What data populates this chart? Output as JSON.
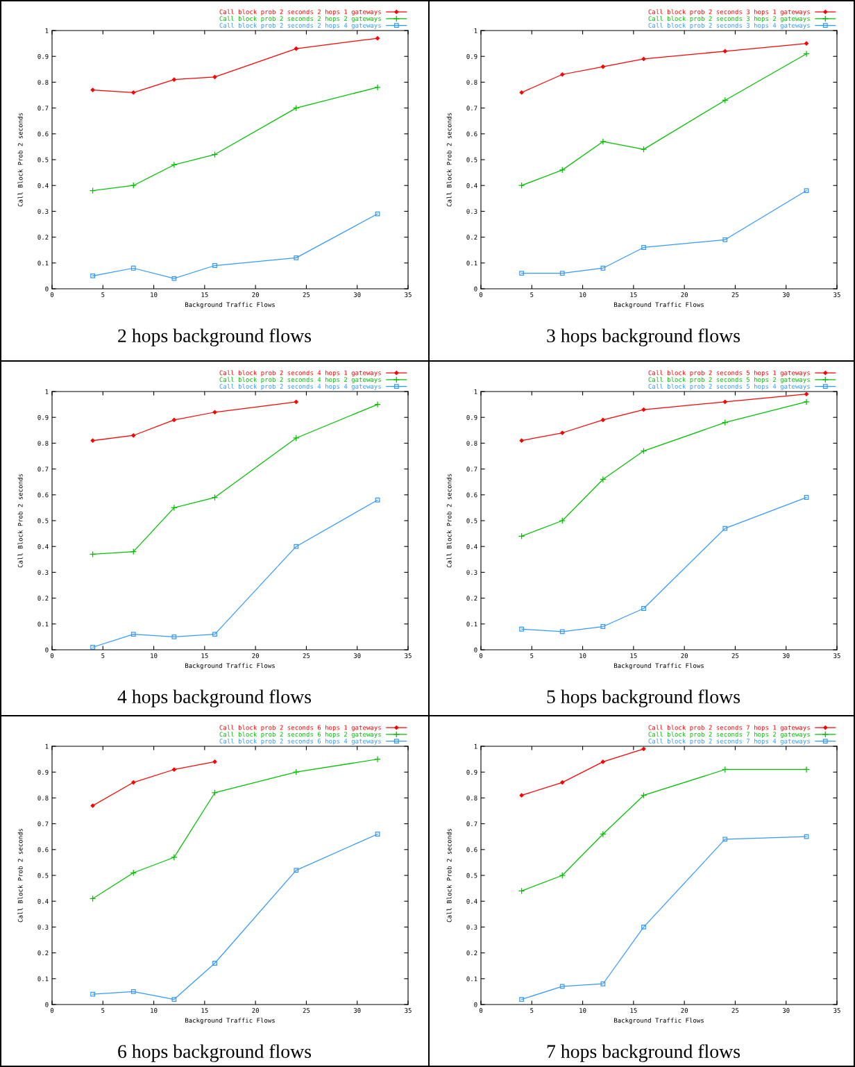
{
  "chart_data": [
    {
      "type": "line",
      "title": "2 hops background flows",
      "xlabel": "Background Traffic Flows",
      "ylabel": "Call Block Prob 2 seconds",
      "x": [
        4,
        8,
        12,
        16,
        24,
        32
      ],
      "xlim": [
        0,
        35
      ],
      "xticks": [
        0,
        5,
        10,
        15,
        20,
        25,
        30,
        35
      ],
      "ylim": [
        0,
        1
      ],
      "yticks": [
        0,
        0.1,
        0.2,
        0.3,
        0.4,
        0.5,
        0.6,
        0.7,
        0.8,
        0.9,
        1
      ],
      "legend": "top right",
      "grid": false,
      "line_style": "solid",
      "series": [
        {
          "name": "Call block prob 2 seconds 2 hops 1 gateways",
          "color": "#ff0000",
          "marker": "diamond",
          "values": [
            0.77,
            0.76,
            0.81,
            0.82,
            0.93,
            0.97
          ]
        },
        {
          "name": "Call block prob 2 seconds 2 hops 2 gateways",
          "color": "#00c000",
          "marker": "cross",
          "values": [
            0.38,
            0.4,
            0.48,
            0.52,
            0.7,
            0.78
          ]
        },
        {
          "name": "Call block prob 2 seconds 2 hops 4 gateways",
          "color": "#3399ff",
          "marker": "square",
          "values": [
            0.05,
            0.08,
            0.04,
            0.09,
            0.12,
            0.29
          ]
        }
      ]
    },
    {
      "type": "line",
      "title": "3 hops background flows",
      "xlabel": "Background Traffic Flows",
      "ylabel": "Call Block Prob 2 seconds",
      "x": [
        4,
        8,
        12,
        16,
        24,
        32
      ],
      "xlim": [
        0,
        35
      ],
      "xticks": [
        0,
        5,
        10,
        15,
        20,
        25,
        30,
        35
      ],
      "ylim": [
        0,
        1
      ],
      "yticks": [
        0,
        0.1,
        0.2,
        0.3,
        0.4,
        0.5,
        0.6,
        0.7,
        0.8,
        0.9,
        1
      ],
      "legend": "top right",
      "grid": false,
      "line_style": "solid",
      "series": [
        {
          "name": "Call block prob 2 seconds 3 hops 1 gateways",
          "color": "#ff0000",
          "marker": "diamond",
          "values": [
            0.76,
            0.83,
            0.86,
            0.89,
            0.92,
            0.95
          ]
        },
        {
          "name": "Call block prob 2 seconds 3 hops 2 gateways",
          "color": "#00c000",
          "marker": "cross",
          "values": [
            0.4,
            0.46,
            0.57,
            0.54,
            0.73,
            0.91
          ]
        },
        {
          "name": "Call block prob 2 seconds 3 hops 4 gateways",
          "color": "#3399ff",
          "marker": "square",
          "values": [
            0.06,
            0.06,
            0.08,
            0.16,
            0.19,
            0.38
          ]
        }
      ]
    },
    {
      "type": "line",
      "title": "4 hops background flows",
      "xlabel": "Background Traffic Flows",
      "ylabel": "Call Block Prob 2 seconds",
      "x": [
        4,
        8,
        12,
        16,
        24,
        32
      ],
      "xlim": [
        0,
        35
      ],
      "xticks": [
        0,
        5,
        10,
        15,
        20,
        25,
        30,
        35
      ],
      "ylim": [
        0,
        1
      ],
      "yticks": [
        0,
        0.1,
        0.2,
        0.3,
        0.4,
        0.5,
        0.6,
        0.7,
        0.8,
        0.9,
        1
      ],
      "legend": "top right",
      "grid": false,
      "line_style": "solid",
      "series": [
        {
          "name": "Call block prob 2 seconds 4 hops 1 gateways",
          "color": "#ff0000",
          "marker": "diamond",
          "values": [
            0.81,
            0.83,
            0.89,
            0.92,
            0.96,
            null
          ]
        },
        {
          "name": "Call block prob 2 seconds 4 hops 2 gateways",
          "color": "#00c000",
          "marker": "cross",
          "values": [
            0.37,
            0.38,
            0.55,
            0.59,
            0.82,
            0.95
          ]
        },
        {
          "name": "Call block prob 2 seconds 4 hops 4 gateways",
          "color": "#3399ff",
          "marker": "square",
          "values": [
            0.01,
            0.06,
            0.05,
            0.06,
            0.4,
            0.58
          ]
        }
      ]
    },
    {
      "type": "line",
      "title": "5 hops background flows",
      "xlabel": "Background Traffic Flows",
      "ylabel": "Call Block Prob 2 seconds",
      "x": [
        4,
        8,
        12,
        16,
        24,
        32
      ],
      "xlim": [
        0,
        35
      ],
      "xticks": [
        0,
        5,
        10,
        15,
        20,
        25,
        30,
        35
      ],
      "ylim": [
        0,
        1
      ],
      "yticks": [
        0,
        0.1,
        0.2,
        0.3,
        0.4,
        0.5,
        0.6,
        0.7,
        0.8,
        0.9,
        1
      ],
      "legend": "top right",
      "grid": false,
      "line_style": "solid",
      "series": [
        {
          "name": "Call block prob 2 seconds 5 hops 1 gateways",
          "color": "#ff0000",
          "marker": "diamond",
          "values": [
            0.81,
            0.84,
            0.89,
            0.93,
            0.96,
            0.99
          ]
        },
        {
          "name": "Call block prob 2 seconds 5 hops 2 gateways",
          "color": "#00c000",
          "marker": "cross",
          "values": [
            0.44,
            0.5,
            0.66,
            0.77,
            0.88,
            0.96
          ]
        },
        {
          "name": "Call block prob 2 seconds 5 hops 4 gateways",
          "color": "#3399ff",
          "marker": "square",
          "values": [
            0.08,
            0.07,
            0.09,
            0.16,
            0.47,
            0.59
          ]
        }
      ]
    },
    {
      "type": "line",
      "title": "6 hops background flows",
      "xlabel": "Background Traffic Flows",
      "ylabel": "Call Block Prob 2 seconds",
      "x": [
        4,
        8,
        12,
        16,
        24,
        32
      ],
      "xlim": [
        0,
        35
      ],
      "xticks": [
        0,
        5,
        10,
        15,
        20,
        25,
        30,
        35
      ],
      "ylim": [
        0,
        1
      ],
      "yticks": [
        0,
        0.1,
        0.2,
        0.3,
        0.4,
        0.5,
        0.6,
        0.7,
        0.8,
        0.9,
        1
      ],
      "legend": "top right",
      "grid": false,
      "line_style": "solid",
      "series": [
        {
          "name": "Call block prob 2 seconds 6 hops 1 gateways",
          "color": "#ff0000",
          "marker": "diamond",
          "values": [
            0.77,
            0.86,
            0.91,
            0.94,
            null,
            null
          ]
        },
        {
          "name": "Call block prob 2 seconds 6 hops 2 gateways",
          "color": "#00c000",
          "marker": "cross",
          "values": [
            0.41,
            0.51,
            0.57,
            0.82,
            0.9,
            0.95
          ]
        },
        {
          "name": "Call block prob 2 seconds 6 hops 4 gateways",
          "color": "#3399ff",
          "marker": "square",
          "values": [
            0.04,
            0.05,
            0.02,
            0.16,
            0.52,
            0.66
          ]
        }
      ]
    },
    {
      "type": "line",
      "title": "7 hops background flows",
      "xlabel": "Background Traffic Flows",
      "ylabel": "Call Block Prob 2 seconds",
      "x": [
        4,
        8,
        12,
        16,
        24,
        32
      ],
      "xlim": [
        0,
        35
      ],
      "xticks": [
        0,
        5,
        10,
        15,
        20,
        25,
        30,
        35
      ],
      "ylim": [
        0,
        1
      ],
      "yticks": [
        0,
        0.1,
        0.2,
        0.3,
        0.4,
        0.5,
        0.6,
        0.7,
        0.8,
        0.9,
        1
      ],
      "legend": "top right",
      "grid": false,
      "line_style": "solid",
      "series": [
        {
          "name": "Call block prob 2 seconds 7 hops 1 gateways",
          "color": "#ff0000",
          "marker": "diamond",
          "values": [
            0.81,
            0.86,
            0.94,
            0.99,
            null,
            null
          ]
        },
        {
          "name": "Call block prob 2 seconds 7 hops 2 gateways",
          "color": "#00c000",
          "marker": "cross",
          "values": [
            0.44,
            0.5,
            0.66,
            0.81,
            0.91,
            0.91
          ]
        },
        {
          "name": "Call block prob 2 seconds 7 hops 4 gateways",
          "color": "#3399ff",
          "marker": "square",
          "values": [
            0.02,
            0.07,
            0.08,
            0.3,
            0.64,
            0.65
          ]
        }
      ]
    }
  ]
}
